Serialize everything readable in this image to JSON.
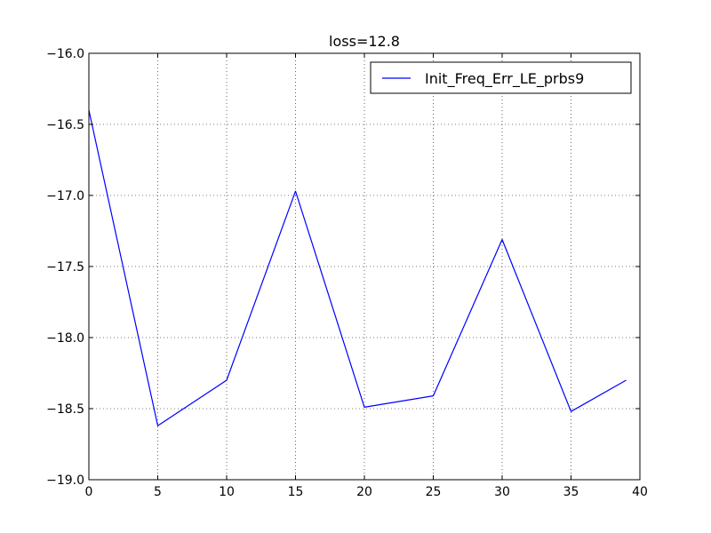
{
  "chart_data": {
    "type": "line",
    "title": "loss=12.8",
    "xlabel": "",
    "ylabel": "",
    "xlim": [
      0,
      40
    ],
    "ylim": [
      -19.0,
      -16.0
    ],
    "xticks": [
      0,
      5,
      10,
      15,
      20,
      25,
      30,
      35,
      40
    ],
    "yticks": [
      -16.0,
      -16.5,
      -17.0,
      -17.5,
      -18.0,
      -18.5,
      -19.0
    ],
    "xtick_labels": [
      "0",
      "5",
      "10",
      "15",
      "20",
      "25",
      "30",
      "35",
      "40"
    ],
    "ytick_labels": [
      "−16.0",
      "−16.5",
      "−17.0",
      "−17.5",
      "−18.0",
      "−18.5",
      "−19.0"
    ],
    "grid": true,
    "legend_position": "top-right",
    "series": [
      {
        "name": "Init_Freq_Err_LE_prbs9",
        "color": "#0000ff",
        "x": [
          0,
          5,
          10,
          15,
          20,
          25,
          30,
          35,
          39
        ],
        "y": [
          -16.4,
          -18.62,
          -18.3,
          -16.97,
          -18.49,
          -18.41,
          -17.31,
          -18.52,
          -18.3
        ]
      }
    ]
  }
}
